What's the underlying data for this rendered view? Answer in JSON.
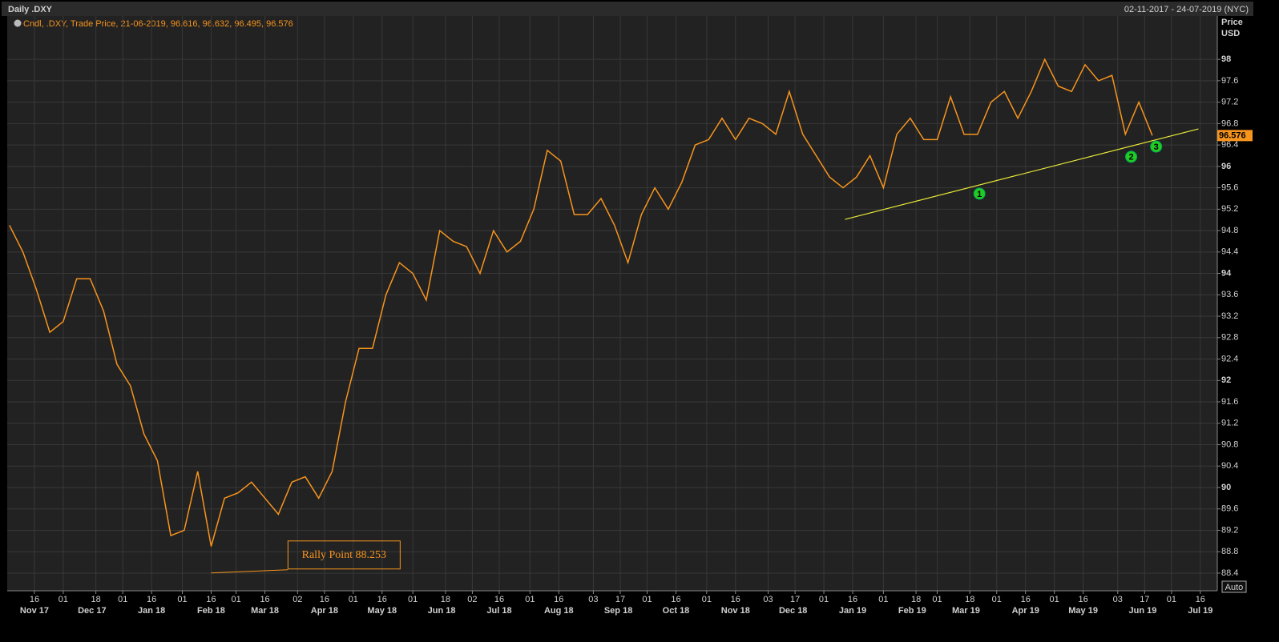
{
  "chart_data": {
    "type": "line",
    "title": "Daily .DXY",
    "date_range": "02-11-2017 - 24-07-2019 (NYC)",
    "legend_text": "Cndl, .DXY, Trade Price, 21-06-2019, 96.616, 96.632, 96.495, 96.576",
    "y_axis_label": "Price",
    "y_axis_unit": "USD",
    "auto_button": "Auto",
    "color": "#f7941d",
    "x": [
      "2017-11-03",
      "2017-11-10",
      "2017-11-17",
      "2017-11-24",
      "2017-12-01",
      "2017-12-08",
      "2017-12-15",
      "2017-12-22",
      "2017-12-29",
      "2018-01-05",
      "2018-01-12",
      "2018-01-19",
      "2018-01-26",
      "2018-02-02",
      "2018-02-09",
      "2018-02-16",
      "2018-02-23",
      "2018-03-02",
      "2018-03-09",
      "2018-03-16",
      "2018-03-23",
      "2018-03-30",
      "2018-04-06",
      "2018-04-13",
      "2018-04-20",
      "2018-04-27",
      "2018-05-04",
      "2018-05-11",
      "2018-05-18",
      "2018-05-25",
      "2018-06-01",
      "2018-06-08",
      "2018-06-15",
      "2018-06-22",
      "2018-06-29",
      "2018-07-06",
      "2018-07-13",
      "2018-07-20",
      "2018-07-27",
      "2018-08-03",
      "2018-08-10",
      "2018-08-17",
      "2018-08-24",
      "2018-08-31",
      "2018-09-07",
      "2018-09-14",
      "2018-09-21",
      "2018-09-28",
      "2018-10-05",
      "2018-10-12",
      "2018-10-19",
      "2018-10-26",
      "2018-11-02",
      "2018-11-09",
      "2018-11-16",
      "2018-11-23",
      "2018-11-30",
      "2018-12-07",
      "2018-12-14",
      "2018-12-21",
      "2018-12-28",
      "2019-01-04",
      "2019-01-11",
      "2019-01-18",
      "2019-01-25",
      "2019-02-01",
      "2019-02-08",
      "2019-02-15",
      "2019-02-22",
      "2019-03-01",
      "2019-03-08",
      "2019-03-15",
      "2019-03-22",
      "2019-03-29",
      "2019-04-05",
      "2019-04-12",
      "2019-04-19",
      "2019-04-26",
      "2019-05-03",
      "2019-05-10",
      "2019-05-17",
      "2019-05-24",
      "2019-05-31",
      "2019-06-07",
      "2019-06-14",
      "2019-06-21"
    ],
    "values": [
      94.9,
      94.4,
      93.7,
      92.9,
      93.1,
      93.9,
      93.9,
      93.3,
      92.3,
      91.9,
      91.0,
      90.5,
      89.1,
      89.2,
      90.3,
      88.9,
      89.8,
      89.9,
      90.1,
      89.8,
      89.5,
      90.1,
      90.2,
      89.8,
      90.3,
      91.6,
      92.6,
      92.6,
      93.6,
      94.2,
      94.0,
      93.5,
      94.8,
      94.6,
      94.5,
      94.0,
      94.8,
      94.4,
      94.6,
      95.2,
      96.3,
      96.1,
      95.1,
      95.1,
      95.4,
      94.9,
      94.2,
      95.1,
      95.6,
      95.2,
      95.7,
      96.4,
      96.5,
      96.9,
      96.5,
      96.9,
      96.8,
      96.6,
      97.4,
      96.6,
      96.2,
      95.8,
      95.6,
      95.8,
      96.2,
      95.6,
      96.6,
      96.9,
      96.5,
      96.5,
      97.3,
      96.6,
      96.6,
      97.2,
      97.4,
      96.9,
      97.4,
      98.0,
      97.5,
      97.4,
      97.9,
      97.6,
      97.7,
      96.6,
      97.2,
      96.576
    ],
    "last_price": 96.576,
    "xlim": [
      "2017-11-02",
      "2019-07-24"
    ],
    "ylim": [
      88.07,
      98.81
    ],
    "yticks": [
      88.4,
      88.8,
      89.2,
      89.6,
      90,
      90.4,
      90.8,
      91.2,
      91.6,
      92,
      92.4,
      92.8,
      93.2,
      93.6,
      94,
      94.4,
      94.8,
      95.2,
      95.6,
      96,
      96.4,
      96.8,
      97.2,
      97.6,
      98
    ],
    "xticks": [
      {
        "value": "2017-11-16",
        "label": "16"
      },
      {
        "value": "2017-12-01",
        "label": "01"
      },
      {
        "value": "2017-12-18",
        "label": "18"
      },
      {
        "value": "2018-01-01",
        "label": "01"
      },
      {
        "value": "2018-01-16",
        "label": "16"
      },
      {
        "value": "2018-02-01",
        "label": "01"
      },
      {
        "value": "2018-02-16",
        "label": "16"
      },
      {
        "value": "2018-03-01",
        "label": "01"
      },
      {
        "value": "2018-03-16",
        "label": "16"
      },
      {
        "value": "2018-04-02",
        "label": "02"
      },
      {
        "value": "2018-04-16",
        "label": "16"
      },
      {
        "value": "2018-05-01",
        "label": "01"
      },
      {
        "value": "2018-05-16",
        "label": "16"
      },
      {
        "value": "2018-06-01",
        "label": "01"
      },
      {
        "value": "2018-06-18",
        "label": "18"
      },
      {
        "value": "2018-07-02",
        "label": "02"
      },
      {
        "value": "2018-07-16",
        "label": "16"
      },
      {
        "value": "2018-08-01",
        "label": "01"
      },
      {
        "value": "2018-08-16",
        "label": "16"
      },
      {
        "value": "2018-09-03",
        "label": "03"
      },
      {
        "value": "2018-09-17",
        "label": "17"
      },
      {
        "value": "2018-10-01",
        "label": "01"
      },
      {
        "value": "2018-10-16",
        "label": "16"
      },
      {
        "value": "2018-11-01",
        "label": "01"
      },
      {
        "value": "2018-11-16",
        "label": "16"
      },
      {
        "value": "2018-12-03",
        "label": "03"
      },
      {
        "value": "2018-12-17",
        "label": "17"
      },
      {
        "value": "2019-01-01",
        "label": "01"
      },
      {
        "value": "2019-01-16",
        "label": "16"
      },
      {
        "value": "2019-02-01",
        "label": "01"
      },
      {
        "value": "2019-02-18",
        "label": "18"
      },
      {
        "value": "2019-03-01",
        "label": "01"
      },
      {
        "value": "2019-03-18",
        "label": "18"
      },
      {
        "value": "2019-04-01",
        "label": "01"
      },
      {
        "value": "2019-04-16",
        "label": "16"
      },
      {
        "value": "2019-05-01",
        "label": "01"
      },
      {
        "value": "2019-05-16",
        "label": "16"
      },
      {
        "value": "2019-06-03",
        "label": "03"
      },
      {
        "value": "2019-06-17",
        "label": "17"
      },
      {
        "value": "2019-07-01",
        "label": "01"
      },
      {
        "value": "2019-07-16",
        "label": "16"
      }
    ],
    "month_labels": [
      {
        "value": "2017-11-16",
        "label": "Nov 17"
      },
      {
        "value": "2017-12-16",
        "label": "Dec 17"
      },
      {
        "value": "2018-01-16",
        "label": "Jan 18"
      },
      {
        "value": "2018-02-16",
        "label": "Feb 18"
      },
      {
        "value": "2018-03-16",
        "label": "Mar 18"
      },
      {
        "value": "2018-04-16",
        "label": "Apr 18"
      },
      {
        "value": "2018-05-16",
        "label": "May 18"
      },
      {
        "value": "2018-06-16",
        "label": "Jun 18"
      },
      {
        "value": "2018-07-16",
        "label": "Jul 18"
      },
      {
        "value": "2018-08-16",
        "label": "Aug 18"
      },
      {
        "value": "2018-09-16",
        "label": "Sep 18"
      },
      {
        "value": "2018-10-16",
        "label": "Oct 18"
      },
      {
        "value": "2018-11-16",
        "label": "Nov 18"
      },
      {
        "value": "2018-12-16",
        "label": "Dec 18"
      },
      {
        "value": "2019-01-16",
        "label": "Jan 19"
      },
      {
        "value": "2019-02-16",
        "label": "Feb 19"
      },
      {
        "value": "2019-03-16",
        "label": "Mar 19"
      },
      {
        "value": "2019-04-16",
        "label": "Apr 19"
      },
      {
        "value": "2019-05-16",
        "label": "May 19"
      },
      {
        "value": "2019-06-16",
        "label": "Jun 19"
      },
      {
        "value": "2019-07-16",
        "label": "Jul 19"
      }
    ],
    "grid": true,
    "trendline": {
      "color": "#e8e83a",
      "x": [
        "2019-01-12",
        "2019-07-15"
      ],
      "values": [
        95.01,
        96.7
      ]
    },
    "markers": [
      {
        "label": "1",
        "x": "2019-03-23",
        "y": 95.49
      },
      {
        "label": "2",
        "x": "2019-06-10",
        "y": 96.18
      },
      {
        "label": "3",
        "x": "2019-06-23",
        "y": 96.37
      }
    ],
    "annotation": {
      "text": "Rally Point 88.253",
      "x": "2018-02-16",
      "y": 88.253,
      "box_x": "2018-03-28"
    }
  }
}
